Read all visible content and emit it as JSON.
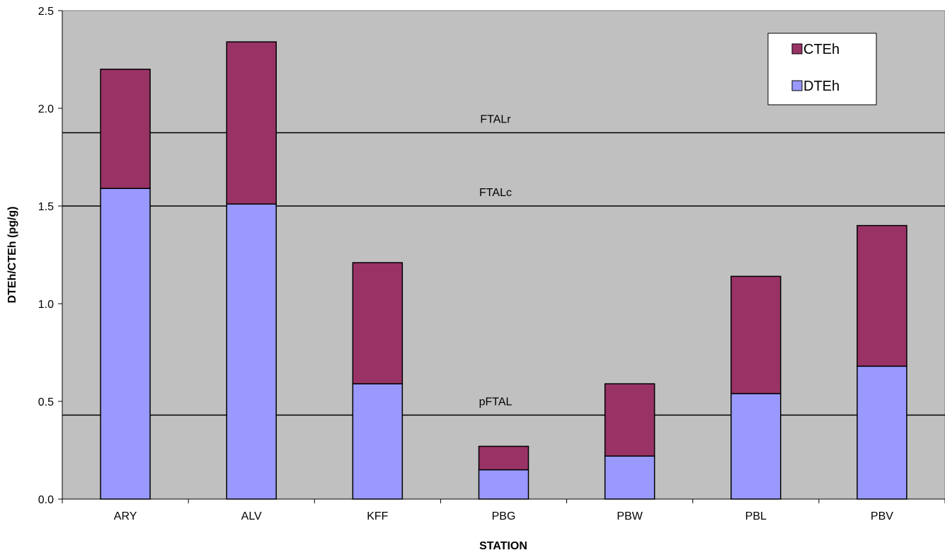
{
  "chart_data": {
    "type": "bar",
    "stacked": true,
    "title": "",
    "xlabel": "STATION",
    "ylabel": "DTEh/CTEh (pg/g)",
    "categories": [
      "ARY",
      "ALV",
      "KFF",
      "PBG",
      "PBW",
      "PBL",
      "PBV"
    ],
    "series": [
      {
        "name": "DTEh",
        "color": "#9999ff",
        "values": [
          1.59,
          1.51,
          0.59,
          0.15,
          0.22,
          0.54,
          0.68
        ]
      },
      {
        "name": "CTEh",
        "color": "#993366",
        "values": [
          0.61,
          0.83,
          0.62,
          0.12,
          0.37,
          0.6,
          0.72
        ]
      }
    ],
    "ylim": [
      0,
      2.5
    ],
    "yticks": [
      "0.0",
      "0.5",
      "1.0",
      "1.5",
      "2.0",
      "2.5"
    ],
    "reference_lines": [
      {
        "label": "FTALr",
        "value": 1.875
      },
      {
        "label": "FTALc",
        "value": 1.5
      },
      {
        "label": "pFTAL",
        "value": 0.43
      }
    ],
    "legend": {
      "position": "top-right",
      "entries": [
        "CTEh",
        "DTEh"
      ]
    },
    "plot_background": "#c0c0c0",
    "grid": false
  }
}
